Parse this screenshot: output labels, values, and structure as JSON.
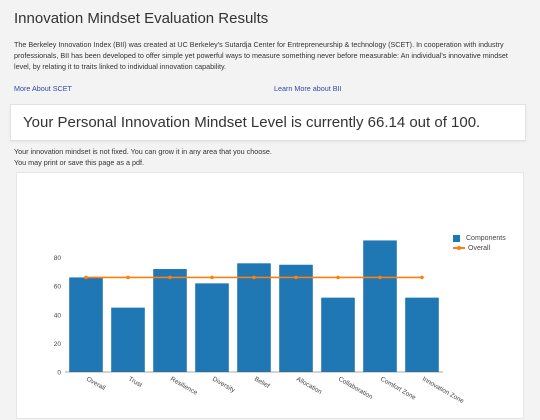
{
  "header": {
    "title": "Innovation Mindset Evaluation Results"
  },
  "intro": {
    "text": "The Berkeley Innovation Index (BII) was created at UC Berkeley's Sutardja Center for Entrepreneurship & technology (SCET). In cooperation with industry professionals, BII has been developed to offer simple yet powerful ways to measure something never before measurable: An individual's innovative mindset level, by relating it to traits linked to individual innovation capability."
  },
  "links": {
    "scet": "More About SCET",
    "bii": "Learn More about BII"
  },
  "score": {
    "text": "Your Personal Innovation Mindset Level is currently 66.14 out of 100."
  },
  "notes": {
    "line1": "Your innovation mindset is not fixed.  You can grow it in any area that you choose.",
    "line2": "You may print or save this page as a pdf."
  },
  "chart_data": {
    "type": "bar",
    "categories": [
      "Overall",
      "Trust",
      "Resilience",
      "Diversity",
      "Belief",
      "Allocation",
      "Collaboration",
      "Comfort Zone",
      "Innovation Zone"
    ],
    "series": [
      {
        "name": "Components",
        "type": "bar",
        "color": "#1f77b4",
        "values": [
          66.14,
          45,
          72,
          62,
          76,
          75,
          52,
          92,
          52
        ]
      },
      {
        "name": "Overall",
        "type": "line",
        "color": "#ff7f0e",
        "values": [
          66.14,
          66.14,
          66.14,
          66.14,
          66.14,
          66.14,
          66.14,
          66.14,
          66.14
        ]
      }
    ],
    "yticks": [
      0,
      20,
      40,
      60,
      80
    ],
    "ylim": [
      0,
      100
    ],
    "legend_position": "top-right",
    "grid": false
  }
}
